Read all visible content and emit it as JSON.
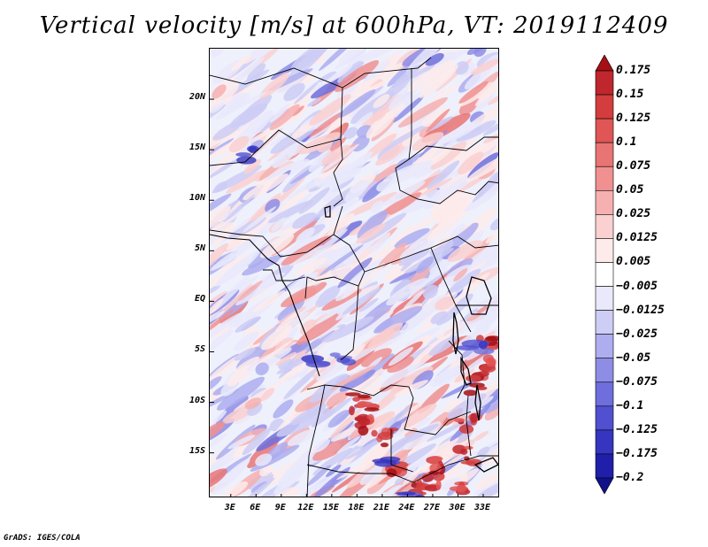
{
  "title": "Vertical velocity [m/s] at 600hPa, VT: 2019112409",
  "footer": "GrADS: IGES/COLA",
  "map": {
    "lat_ticks": [
      {
        "label": "20N",
        "value": 20
      },
      {
        "label": "15N",
        "value": 15
      },
      {
        "label": "10N",
        "value": 10
      },
      {
        "label": "5N",
        "value": 5
      },
      {
        "label": "EQ",
        "value": 0
      },
      {
        "label": "5S",
        "value": -5
      },
      {
        "label": "10S",
        "value": -10
      },
      {
        "label": "15S",
        "value": -15
      }
    ],
    "lon_ticks": [
      {
        "label": "3E",
        "value": 3
      },
      {
        "label": "6E",
        "value": 6
      },
      {
        "label": "9E",
        "value": 9
      },
      {
        "label": "12E",
        "value": 12
      },
      {
        "label": "15E",
        "value": 15
      },
      {
        "label": "18E",
        "value": 18
      },
      {
        "label": "21E",
        "value": 21
      },
      {
        "label": "24E",
        "value": 24
      },
      {
        "label": "27E",
        "value": 27
      },
      {
        "label": "30E",
        "value": 30
      },
      {
        "label": "33E",
        "value": 33
      }
    ],
    "lon_range": [
      0.5,
      35
    ],
    "lat_range": [
      -19.5,
      25
    ]
  },
  "colorbar": {
    "levels": [
      "0.175",
      "0.15",
      "0.125",
      "0.1",
      "0.075",
      "0.05",
      "0.025",
      "0.0125",
      "0.005",
      "−0.005",
      "−0.0125",
      "−0.025",
      "−0.05",
      "−0.075",
      "−0.1",
      "−0.125",
      "−0.175",
      "−0.2"
    ],
    "colors": [
      "#a50f15",
      "#c0262d",
      "#d43d3d",
      "#e05555",
      "#e87474",
      "#f09090",
      "#f6b0b0",
      "#fad0d0",
      "#fdebeb",
      "#ffffff",
      "#e9e9fb",
      "#cdcdf5",
      "#adadef",
      "#8d8de6",
      "#6e6edc",
      "#5050d0",
      "#3535bf",
      "#1f1faa",
      "#11118a"
    ]
  }
}
